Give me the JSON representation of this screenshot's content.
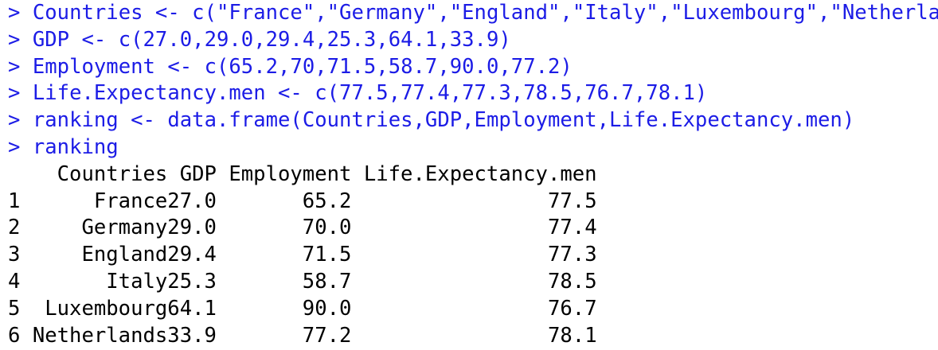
{
  "console": {
    "commands": [
      {
        "prompt": ">",
        "code": "Countries <- c(\"France\",\"Germany\",\"England\",\"Italy\",\"Luxembourg\",\"Netherlands\")"
      },
      {
        "prompt": ">",
        "code": "GDP <- c(27.0,29.0,29.4,25.3,64.1,33.9)"
      },
      {
        "prompt": ">",
        "code": "Employment <- c(65.2,70,71.5,58.7,90.0,77.2)"
      },
      {
        "prompt": ">",
        "code": "Life.Expectancy.men <- c(77.5,77.4,77.3,78.5,76.7,78.1)"
      },
      {
        "prompt": ">",
        "code": "ranking <- data.frame(Countries,GDP,Employment,Life.Expectancy.men)"
      },
      {
        "prompt": ">",
        "code": "ranking"
      }
    ],
    "output": {
      "header": [
        "Countries",
        "GDP",
        "Employment",
        "Life.Expectancy.men"
      ],
      "rows": [
        [
          "1",
          "France",
          "27.0",
          "65.2",
          "77.5"
        ],
        [
          "2",
          "Germany",
          "29.0",
          "70.0",
          "77.4"
        ],
        [
          "3",
          "England",
          "29.4",
          "71.5",
          "77.3"
        ],
        [
          "4",
          "Italy",
          "25.3",
          "58.7",
          "78.5"
        ],
        [
          "5",
          "Luxembourg",
          "64.1",
          "90.0",
          "76.7"
        ],
        [
          "6",
          "Netherlands",
          "33.9",
          "77.2",
          "78.1"
        ]
      ]
    }
  }
}
